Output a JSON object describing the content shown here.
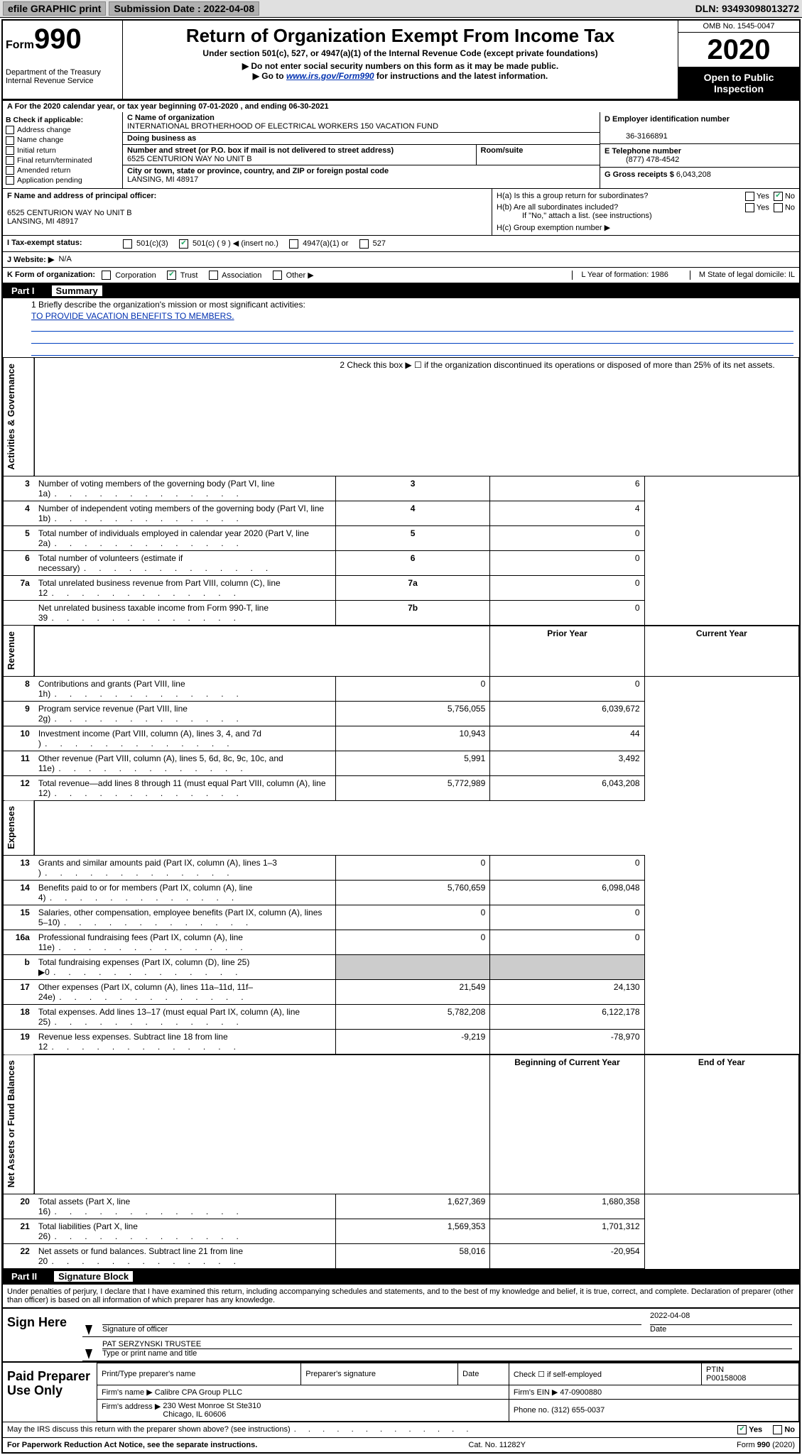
{
  "topbar": {
    "efile": "efile GRAPHIC print",
    "submission_label": "Submission Date : 2022-04-08",
    "dln": "DLN: 93493098013272"
  },
  "header": {
    "form_word": "Form",
    "form_number": "990",
    "dept": "Department of the Treasury",
    "irs": "Internal Revenue Service",
    "title": "Return of Organization Exempt From Income Tax",
    "subtitle": "Under section 501(c), 527, or 4947(a)(1) of the Internal Revenue Code (except private foundations)",
    "note1": "▶ Do not enter social security numbers on this form as it may be made public.",
    "note2_pre": "▶ Go to ",
    "note2_link": "www.irs.gov/Form990",
    "note2_post": " for instructions and the latest information.",
    "omb": "OMB No. 1545-0047",
    "year": "2020",
    "open_public": "Open to Public Inspection"
  },
  "lineA": "A For the 2020 calendar year, or tax year beginning 07-01-2020     , and ending 06-30-2021",
  "checkB": {
    "title": "B Check if applicable:",
    "items": [
      "Address change",
      "Name change",
      "Initial return",
      "Final return/terminated",
      "Amended return",
      "Application pending"
    ]
  },
  "nameBlock": {
    "c_label": "C Name of organization",
    "name": "INTERNATIONAL BROTHERHOOD OF ELECTRICAL WORKERS 150 VACATION FUND",
    "dba_label": "Doing business as",
    "addr_label": "Number and street (or P.O. box if mail is not delivered to street address)",
    "room_label": "Room/suite",
    "addr": "6525 CENTURION WAY No UNIT B",
    "city_label": "City or town, state or province, country, and ZIP or foreign postal code",
    "city": "LANSING, MI  48917"
  },
  "rightBlock": {
    "d_label": "D Employer identification number",
    "d_val": "36-3166891",
    "e_label": "E Telephone number",
    "e_val": "(877) 478-4542",
    "g_label": "G Gross receipts $",
    "g_val": "6,043,208"
  },
  "fh": {
    "f_label": "F Name and address of principal officer:",
    "f_addr": "6525 CENTURION WAY No UNIT B\nLANSING, MI  48917",
    "ha_label": "H(a)  Is this a group return for subordinates?",
    "hb_label": "H(b)  Are all subordinates included?",
    "hb_note": "If \"No,\" attach a list. (see instructions)",
    "hc_label": "H(c)  Group exemption number ▶",
    "yes": "Yes",
    "no": "No"
  },
  "tax_row": {
    "label": "I   Tax-exempt status:",
    "opts": [
      "501(c)(3)",
      "501(c) ( 9 ) ◀ (insert no.)",
      "4947(a)(1) or",
      "527"
    ]
  },
  "website": {
    "label": "J   Website: ▶",
    "val": "N/A"
  },
  "korg": {
    "label": "K Form of organization:",
    "opts": [
      "Corporation",
      "Trust",
      "Association",
      "Other ▶"
    ],
    "l": "L Year of formation: 1986",
    "m": "M State of legal domicile: IL"
  },
  "part1": {
    "num": "Part I",
    "title": "Summary"
  },
  "mission": {
    "label": "1   Briefly describe the organization's mission or most significant activities:",
    "val": "TO PROVIDE VACATION BENEFITS TO MEMBERS."
  },
  "line2": "2   Check this box ▶ ☐  if the organization discontinued its operations or disposed of more than 25% of its net assets.",
  "small_lines": {
    "headers_py": "Prior Year",
    "headers_cy": "Current Year",
    "headers_bcy": "Beginning of Current Year",
    "headers_eoy": "End of Year",
    "rows_top": [
      {
        "n": "3",
        "d": "Number of voting members of the governing body (Part VI, line 1a)",
        "k": "3",
        "v": "6"
      },
      {
        "n": "4",
        "d": "Number of independent voting members of the governing body (Part VI, line 1b)",
        "k": "4",
        "v": "4"
      },
      {
        "n": "5",
        "d": "Total number of individuals employed in calendar year 2020 (Part V, line 2a)",
        "k": "5",
        "v": "0"
      },
      {
        "n": "6",
        "d": "Total number of volunteers (estimate if necessary)",
        "k": "6",
        "v": "0"
      },
      {
        "n": "7a",
        "d": "Total unrelated business revenue from Part VIII, column (C), line 12",
        "k": "7a",
        "v": "0"
      },
      {
        "n": "",
        "d": "Net unrelated business taxable income from Form 990-T, line 39",
        "k": "7b",
        "v": "0"
      }
    ],
    "rows_rev": [
      {
        "n": "8",
        "d": "Contributions and grants (Part VIII, line 1h)",
        "py": "0",
        "cy": "0"
      },
      {
        "n": "9",
        "d": "Program service revenue (Part VIII, line 2g)",
        "py": "5,756,055",
        "cy": "6,039,672"
      },
      {
        "n": "10",
        "d": "Investment income (Part VIII, column (A), lines 3, 4, and 7d )",
        "py": "10,943",
        "cy": "44"
      },
      {
        "n": "11",
        "d": "Other revenue (Part VIII, column (A), lines 5, 6d, 8c, 9c, 10c, and 11e)",
        "py": "5,991",
        "cy": "3,492"
      },
      {
        "n": "12",
        "d": "Total revenue—add lines 8 through 11 (must equal Part VIII, column (A), line 12)",
        "py": "5,772,989",
        "cy": "6,043,208"
      }
    ],
    "rows_exp": [
      {
        "n": "13",
        "d": "Grants and similar amounts paid (Part IX, column (A), lines 1–3 )",
        "py": "0",
        "cy": "0"
      },
      {
        "n": "14",
        "d": "Benefits paid to or for members (Part IX, column (A), line 4)",
        "py": "5,760,659",
        "cy": "6,098,048"
      },
      {
        "n": "15",
        "d": "Salaries, other compensation, employee benefits (Part IX, column (A), lines 5–10)",
        "py": "0",
        "cy": "0"
      },
      {
        "n": "16a",
        "d": "Professional fundraising fees (Part IX, column (A), line 11e)",
        "py": "0",
        "cy": "0"
      },
      {
        "n": "b",
        "d": "Total fundraising expenses (Part IX, column (D), line 25) ▶0",
        "py": "",
        "cy": ""
      },
      {
        "n": "17",
        "d": "Other expenses (Part IX, column (A), lines 11a–11d, 11f–24e)",
        "py": "21,549",
        "cy": "24,130"
      },
      {
        "n": "18",
        "d": "Total expenses. Add lines 13–17 (must equal Part IX, column (A), line 25)",
        "py": "5,782,208",
        "cy": "6,122,178"
      },
      {
        "n": "19",
        "d": "Revenue less expenses. Subtract line 18 from line 12",
        "py": "-9,219",
        "cy": "-78,970"
      }
    ],
    "rows_net": [
      {
        "n": "20",
        "d": "Total assets (Part X, line 16)",
        "py": "1,627,369",
        "cy": "1,680,358"
      },
      {
        "n": "21",
        "d": "Total liabilities (Part X, line 26)",
        "py": "1,569,353",
        "cy": "1,701,312"
      },
      {
        "n": "22",
        "d": "Net assets or fund balances. Subtract line 21 from line 20",
        "py": "58,016",
        "cy": "-20,954"
      }
    ]
  },
  "vlabels": {
    "gov": "Activities & Governance",
    "rev": "Revenue",
    "exp": "Expenses",
    "net": "Net Assets or Fund Balances"
  },
  "part2": {
    "num": "Part II",
    "title": "Signature Block"
  },
  "declaration": "Under penalties of perjury, I declare that I have examined this return, including accompanying schedules and statements, and to the best of my knowledge and belief, it is true, correct, and complete. Declaration of preparer (other than officer) is based on all information of which preparer has any knowledge.",
  "sign": {
    "here": "Sign Here",
    "sig_officer": "Signature of officer",
    "date": "Date",
    "date_val": "2022-04-08",
    "name_title": "PAT SERZYNSKI  TRUSTEE",
    "type_or_print": "Type or print name and title"
  },
  "paid": {
    "label": "Paid Preparer Use Only",
    "headers": [
      "Print/Type preparer's name",
      "Preparer's signature",
      "Date"
    ],
    "check_self": "Check ☐ if self-employed",
    "ptin_lbl": "PTIN",
    "ptin": "P00158008",
    "firm_name_lbl": "Firm's name      ▶",
    "firm_name": "Calibre CPA Group PLLC",
    "firm_ein_lbl": "Firm's EIN ▶",
    "firm_ein": "47-0900880",
    "firm_addr_lbl": "Firm's address  ▶",
    "firm_addr": "230 West Monroe St Ste310\nChicago, IL  60606",
    "phone_lbl": "Phone no.",
    "phone": "(312) 655-0037"
  },
  "discuss": "May the IRS discuss this return with the preparer shown above? (see instructions)",
  "footer": {
    "left": "For Paperwork Reduction Act Notice, see the separate instructions.",
    "mid": "Cat. No. 11282Y",
    "right": "Form 990 (2020)"
  }
}
